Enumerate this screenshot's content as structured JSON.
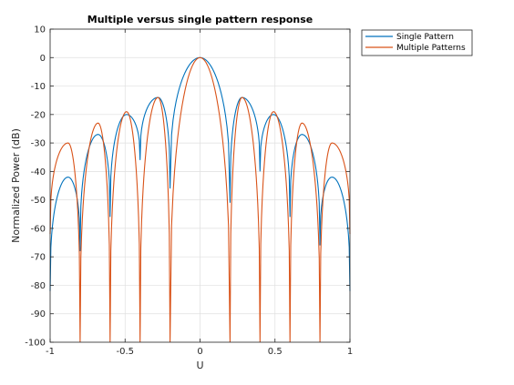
{
  "chart_data": {
    "type": "line",
    "title": "Multiple versus single pattern response",
    "xlabel": "U",
    "ylabel": "Normalized Power (dB)",
    "xlim": [
      -1,
      1
    ],
    "ylim": [
      -100,
      10
    ],
    "xticks": [
      "-1",
      "-0.5",
      "0",
      "0.5",
      "1"
    ],
    "xtick_values": [
      -1,
      -0.5,
      0,
      0.5,
      1
    ],
    "yticks": [
      "10",
      "0",
      "-10",
      "-20",
      "-30",
      "-40",
      "-50",
      "-60",
      "-70",
      "-80",
      "-90",
      "-100"
    ],
    "ytick_values": [
      10,
      0,
      -10,
      -20,
      -30,
      -40,
      -50,
      -60,
      -70,
      -80,
      -90,
      -100
    ],
    "grid": true,
    "legend_position": "outside-top-right",
    "series": [
      {
        "name": "Single Pattern",
        "color": "#0072BD",
        "nulls": [
          -0.8,
          -0.6,
          -0.4,
          -0.2,
          0.2,
          0.4,
          0.6,
          0.8
        ],
        "null_depth_db": [
          -68,
          -56,
          -36,
          -46,
          -51,
          -40,
          -56,
          -66
        ],
        "lobe_peaks": [
          {
            "u": -0.88,
            "db": -42
          },
          {
            "u": -0.68,
            "db": -27
          },
          {
            "u": -0.49,
            "db": -20
          },
          {
            "u": -0.28,
            "db": -14
          },
          {
            "u": 0,
            "db": 0
          },
          {
            "u": 0.28,
            "db": -14
          },
          {
            "u": 0.49,
            "db": -20
          },
          {
            "u": 0.68,
            "db": -27
          },
          {
            "u": 0.88,
            "db": -42
          }
        ],
        "edge_db": -82
      },
      {
        "name": "Multiple Patterns",
        "color": "#D95319",
        "nulls": [
          -0.8,
          -0.6,
          -0.4,
          -0.2,
          0.2,
          0.4,
          0.6,
          0.8
        ],
        "null_depth_db": [
          -100,
          -100,
          -100,
          -100,
          -100,
          -100,
          -100,
          -100
        ],
        "lobe_peaks": [
          {
            "u": -0.88,
            "db": -30
          },
          {
            "u": -0.68,
            "db": -23
          },
          {
            "u": -0.49,
            "db": -19
          },
          {
            "u": -0.28,
            "db": -14
          },
          {
            "u": 0,
            "db": 0
          },
          {
            "u": 0.28,
            "db": -14
          },
          {
            "u": 0.49,
            "db": -19
          },
          {
            "u": 0.68,
            "db": -23
          },
          {
            "u": 0.88,
            "db": -30
          }
        ],
        "edge_db": -62
      }
    ]
  }
}
